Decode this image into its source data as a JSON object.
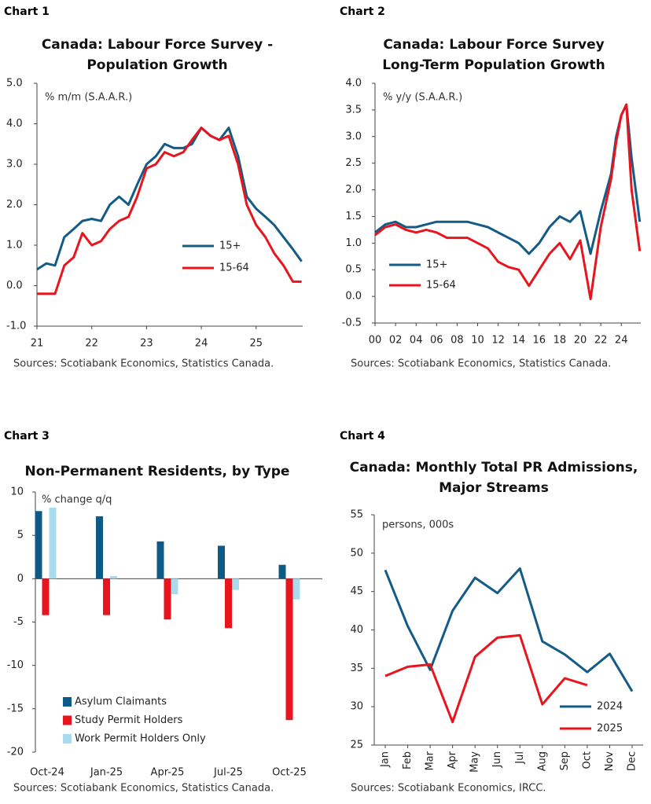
{
  "chart_data": [
    {
      "type": "line",
      "heading": "Chart 1",
      "title": [
        "Canada: Labour Force Survey -",
        "Population Growth"
      ],
      "unit_label": "% m/m (S.A.A.R.)",
      "source": "Sources: Scotiabank Economics, Statistics Canada.",
      "x": [
        2021.0,
        2021.17,
        2021.33,
        2021.5,
        2021.67,
        2021.83,
        2022.0,
        2022.17,
        2022.33,
        2022.5,
        2022.67,
        2022.83,
        2023.0,
        2023.17,
        2023.33,
        2023.5,
        2023.67,
        2023.83,
        2024.0,
        2024.17,
        2024.33,
        2024.5,
        2024.67,
        2024.83,
        2025.0,
        2025.17,
        2025.33,
        2025.5,
        2025.67,
        2025.83
      ],
      "series": [
        {
          "name": "15+",
          "color": "#145b85",
          "values": [
            0.4,
            0.55,
            0.5,
            1.2,
            1.4,
            1.6,
            1.65,
            1.6,
            2.0,
            2.2,
            2.0,
            2.5,
            3.0,
            3.2,
            3.5,
            3.4,
            3.4,
            3.5,
            3.9,
            3.7,
            3.6,
            3.9,
            3.2,
            2.2,
            1.9,
            1.7,
            1.5,
            1.2,
            0.9,
            0.6
          ]
        },
        {
          "name": "15-64",
          "color": "#e8141e",
          "values": [
            -0.2,
            -0.2,
            -0.2,
            0.5,
            0.7,
            1.3,
            1.0,
            1.1,
            1.4,
            1.6,
            1.7,
            2.2,
            2.9,
            3.0,
            3.3,
            3.2,
            3.3,
            3.6,
            3.9,
            3.7,
            3.6,
            3.7,
            3.0,
            2.0,
            1.5,
            1.2,
            0.8,
            0.5,
            0.1,
            0.1
          ]
        }
      ],
      "xlim": [
        2021,
        2025.85
      ],
      "xticks": [
        {
          "value": 2021,
          "label": "21"
        },
        {
          "value": 2022,
          "label": "22"
        },
        {
          "value": 2023,
          "label": "23"
        },
        {
          "value": 2024,
          "label": "24"
        },
        {
          "value": 2025,
          "label": "25"
        }
      ],
      "ylim": [
        -1,
        5
      ],
      "yticks": [
        {
          "value": 5,
          "label": "5.0"
        },
        {
          "value": 4,
          "label": "4.0"
        },
        {
          "value": 3,
          "label": "3.0"
        },
        {
          "value": 2,
          "label": "2.0"
        },
        {
          "value": 1,
          "label": "1.0"
        },
        {
          "value": 0,
          "label": "0.0"
        },
        {
          "value": -1,
          "label": "-1.0"
        }
      ],
      "legend": "lower-right"
    },
    {
      "type": "line",
      "heading": "Chart 2",
      "title": [
        "Canada: Labour Force Survey",
        "Long-Term Population Growth"
      ],
      "unit_label": "% y/y (S.A.A.R.)",
      "source": "Sources: Scotiabank Economics, Statistics Canada.",
      "x": [
        2000,
        2001,
        2002,
        2003,
        2004,
        2005,
        2006,
        2007,
        2008,
        2009,
        2010,
        2011,
        2012,
        2013,
        2014,
        2015,
        2016,
        2017,
        2018,
        2019,
        2020,
        2021,
        2022,
        2023,
        2023.5,
        2024,
        2024.5,
        2025,
        2025.8
      ],
      "series": [
        {
          "name": "15+",
          "color": "#145b85",
          "values": [
            1.2,
            1.35,
            1.4,
            1.3,
            1.3,
            1.35,
            1.4,
            1.4,
            1.4,
            1.4,
            1.35,
            1.3,
            1.2,
            1.1,
            1.0,
            0.8,
            1.0,
            1.3,
            1.5,
            1.4,
            1.6,
            0.8,
            1.6,
            2.3,
            3.0,
            3.4,
            3.6,
            2.6,
            1.4
          ]
        },
        {
          "name": "15-64",
          "color": "#e8141e",
          "values": [
            1.15,
            1.3,
            1.35,
            1.25,
            1.2,
            1.25,
            1.2,
            1.1,
            1.1,
            1.1,
            1.0,
            0.9,
            0.65,
            0.55,
            0.5,
            0.2,
            0.5,
            0.8,
            1.0,
            0.7,
            1.05,
            -0.05,
            1.3,
            2.2,
            2.9,
            3.4,
            3.6,
            2.0,
            0.85
          ]
        }
      ],
      "xlim": [
        2000,
        2025.9
      ],
      "xticks": [
        {
          "value": 2000,
          "label": "00"
        },
        {
          "value": 2002,
          "label": "02"
        },
        {
          "value": 2004,
          "label": "04"
        },
        {
          "value": 2006,
          "label": "06"
        },
        {
          "value": 2008,
          "label": "08"
        },
        {
          "value": 2010,
          "label": "10"
        },
        {
          "value": 2012,
          "label": "12"
        },
        {
          "value": 2014,
          "label": "14"
        },
        {
          "value": 2016,
          "label": "16"
        },
        {
          "value": 2018,
          "label": "18"
        },
        {
          "value": 2020,
          "label": "20"
        },
        {
          "value": 2022,
          "label": "22"
        },
        {
          "value": 2024,
          "label": "24"
        }
      ],
      "ylim": [
        -0.5,
        4
      ],
      "yticks": [
        {
          "value": 4,
          "label": "4.0"
        },
        3.5,
        {
          "value": 3,
          "label": "3.0"
        },
        2.5,
        {
          "value": 2,
          "label": "2.0"
        },
        1.5,
        {
          "value": 1,
          "label": "1.0"
        },
        0.5,
        {
          "value": 0,
          "label": "0.0"
        },
        -0.5
      ],
      "legend": "lower-left"
    },
    {
      "type": "bar",
      "heading": "Chart 3",
      "title": [
        "Non-Permanent Residents, by Type"
      ],
      "unit_label": "% change q/q",
      "source": "Sources: Scotiabank Economics, Statistics Canada.",
      "categories": [
        "Oct-24",
        "Jan-25",
        "Apr-25",
        "Jul-25",
        "Oct-25"
      ],
      "series": [
        {
          "name": "Asylum Claimants",
          "color": "#0d5a86",
          "values": [
            7.8,
            7.2,
            4.3,
            3.8,
            1.6
          ]
        },
        {
          "name": "Study Permit Holders",
          "color": "#e8141e",
          "values": [
            -4.2,
            -4.2,
            -4.7,
            -5.7,
            -16.3
          ]
        },
        {
          "name": "Work Permit Holders Only",
          "color": "#a9dbee",
          "values": [
            8.2,
            0.3,
            -1.8,
            -1.3,
            -2.4
          ]
        }
      ],
      "ylim": [
        -20,
        10
      ],
      "yticks": [
        10,
        5,
        0,
        -5,
        -10,
        -15,
        -20
      ],
      "legend": "lower-left"
    },
    {
      "type": "line",
      "heading": "Chart 4",
      "title": [
        "Canada: Monthly Total PR Admissions,",
        "Major Streams"
      ],
      "unit_label": "persons, 000s",
      "source": "Sources: Scotiabank Economics, IRCC.",
      "categories": [
        "Jan",
        "Feb",
        "Mar",
        "Apr",
        "May",
        "Jun",
        "Jul",
        "Aug",
        "Sep",
        "Oct",
        "Nov",
        "Dec"
      ],
      "series": [
        {
          "name": "2024",
          "color": "#145b85",
          "values": [
            47.8,
            40.5,
            34.8,
            42.5,
            46.8,
            44.8,
            48.0,
            38.5,
            36.8,
            34.5,
            36.9,
            32.0
          ]
        },
        {
          "name": "2025",
          "color": "#e8141e",
          "values": [
            34.0,
            35.2,
            35.5,
            28.0,
            36.5,
            39.0,
            39.3,
            30.3,
            33.7,
            32.8,
            null,
            null
          ]
        }
      ],
      "ylim": [
        25,
        55
      ],
      "yticks": [
        55,
        50,
        45,
        40,
        35,
        30,
        25
      ],
      "legend": "lower-right"
    }
  ]
}
